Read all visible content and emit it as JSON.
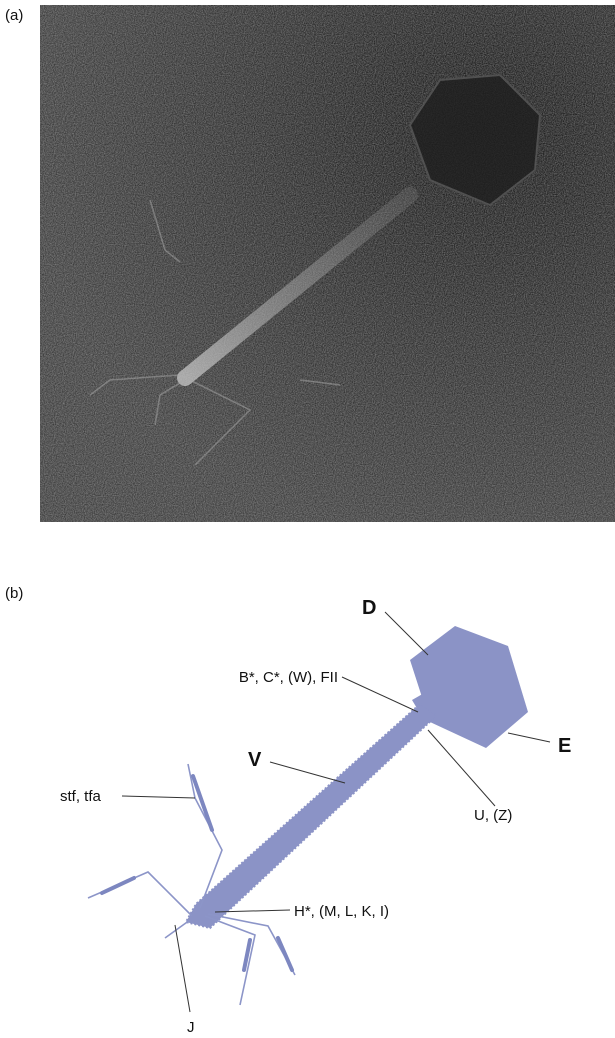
{
  "panels": [
    {
      "label": "(a)"
    },
    {
      "label": "(b)",
      "labels": [
        "D",
        "B*, C*, (W), FII",
        "E",
        "V",
        "U, (Z)",
        "stf, tfa",
        "H*, (M, L, K, I)",
        "J"
      ]
    }
  ]
}
